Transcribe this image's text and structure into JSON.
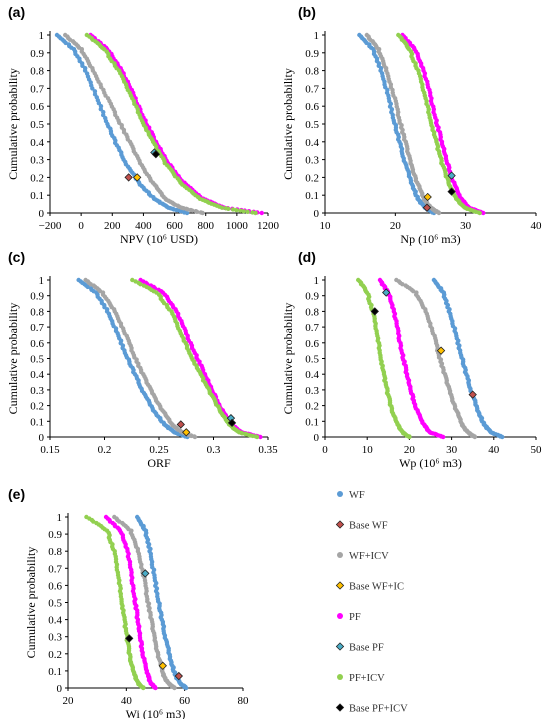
{
  "legend": [
    {
      "label": "WF",
      "kind": "dot",
      "color": "#5b9bd5"
    },
    {
      "label": "Base WF",
      "kind": "diamond",
      "color": "#c0504d"
    },
    {
      "label": "WF+ICV",
      "kind": "dot",
      "color": "#a5a5a5"
    },
    {
      "label": "Base WF+IC",
      "kind": "diamond",
      "color": "#ffc000"
    },
    {
      "label": "PF",
      "kind": "dot",
      "color": "#ff00ff"
    },
    {
      "label": "Base PF",
      "kind": "diamond",
      "color": "#4bacc6"
    },
    {
      "label": "PF+ICV",
      "kind": "dot",
      "color": "#92d050"
    },
    {
      "label": "Base PF+ICV",
      "kind": "diamond",
      "color": "#000000"
    }
  ],
  "chart_data": [
    {
      "type": "scatter",
      "panel": "(a)",
      "xlabel": "NPV (10⁶ USD)",
      "ylabel": "Cumulative probability",
      "xlim": [
        -200,
        1200
      ],
      "xticks": [
        -200,
        0,
        200,
        400,
        600,
        800,
        1000,
        1200
      ],
      "ylim": [
        0,
        1
      ],
      "yticks": [
        0,
        0.1,
        0.2,
        0.3,
        0.4,
        0.5,
        0.6,
        0.7,
        0.8,
        0.9,
        1
      ],
      "series": [
        {
          "name": "WF",
          "color": "#5b9bd5",
          "x": [
            -150,
            -50,
            30,
            100,
            170,
            230,
            300,
            380,
            470,
            560,
            680
          ],
          "y": [
            1,
            0.92,
            0.8,
            0.65,
            0.5,
            0.38,
            0.26,
            0.16,
            0.08,
            0.03,
            0
          ]
        },
        {
          "name": "WF+ICV",
          "color": "#a5a5a5",
          "x": [
            -100,
            0,
            80,
            160,
            240,
            310,
            380,
            460,
            540,
            640,
            780
          ],
          "y": [
            1,
            0.92,
            0.8,
            0.66,
            0.52,
            0.4,
            0.28,
            0.17,
            0.08,
            0.03,
            0
          ]
        },
        {
          "name": "PF",
          "color": "#ff00ff",
          "x": [
            60,
            170,
            260,
            340,
            410,
            480,
            560,
            660,
            780,
            920,
            1160
          ],
          "y": [
            1,
            0.92,
            0.8,
            0.66,
            0.52,
            0.4,
            0.28,
            0.17,
            0.08,
            0.03,
            0
          ]
        },
        {
          "name": "PF+ICV",
          "color": "#92d050",
          "x": [
            40,
            150,
            240,
            320,
            390,
            460,
            540,
            640,
            760,
            900,
            1120
          ],
          "y": [
            1,
            0.92,
            0.8,
            0.66,
            0.52,
            0.4,
            0.28,
            0.17,
            0.08,
            0.03,
            0
          ]
        }
      ],
      "markers": [
        {
          "name": "Base WF",
          "color": "#c0504d",
          "x": 305,
          "y": 0.2
        },
        {
          "name": "Base WF+IC",
          "color": "#ffc000",
          "x": 360,
          "y": 0.2
        },
        {
          "name": "Base PF",
          "color": "#4bacc6",
          "x": 470,
          "y": 0.34
        },
        {
          "name": "Base PF+ICV",
          "color": "#000000",
          "x": 480,
          "y": 0.33
        }
      ]
    },
    {
      "type": "scatter",
      "panel": "(b)",
      "xlabel": "Np (10⁶ m3)",
      "ylabel": "Cumulative probability",
      "xlim": [
        10,
        40
      ],
      "xticks": [
        10,
        20,
        30,
        40
      ],
      "ylim": [
        0,
        1
      ],
      "yticks": [
        0,
        0.1,
        0.2,
        0.3,
        0.4,
        0.5,
        0.6,
        0.7,
        0.8,
        0.9,
        1
      ],
      "series": [
        {
          "name": "WF",
          "color": "#5b9bd5",
          "x": [
            15,
            16.8,
            18,
            19,
            19.8,
            20.6,
            21.4,
            22.3,
            23.2,
            24.2,
            25.5
          ],
          "y": [
            1,
            0.92,
            0.8,
            0.66,
            0.52,
            0.4,
            0.28,
            0.17,
            0.08,
            0.03,
            0
          ]
        },
        {
          "name": "WF+ICV",
          "color": "#a5a5a5",
          "x": [
            16,
            17.6,
            18.8,
            19.8,
            20.6,
            21.4,
            22.2,
            23.1,
            24.1,
            25,
            26.2
          ],
          "y": [
            1,
            0.92,
            0.8,
            0.66,
            0.52,
            0.4,
            0.28,
            0.17,
            0.08,
            0.03,
            0
          ]
        },
        {
          "name": "PF",
          "color": "#ff00ff",
          "x": [
            21,
            22.8,
            24,
            25,
            25.8,
            26.6,
            27.4,
            28.3,
            29.3,
            30.5,
            32.5
          ],
          "y": [
            1,
            0.92,
            0.8,
            0.66,
            0.52,
            0.4,
            0.28,
            0.17,
            0.08,
            0.03,
            0
          ]
        },
        {
          "name": "PF+ICV",
          "color": "#92d050",
          "x": [
            20.5,
            22,
            23.2,
            24.2,
            25,
            25.8,
            26.6,
            27.6,
            28.6,
            29.8,
            32
          ],
          "y": [
            1,
            0.92,
            0.8,
            0.66,
            0.52,
            0.4,
            0.28,
            0.17,
            0.08,
            0.03,
            0
          ]
        }
      ],
      "markers": [
        {
          "name": "Base WF",
          "color": "#c0504d",
          "x": 24.5,
          "y": 0.03
        },
        {
          "name": "Base WF+IC",
          "color": "#ffc000",
          "x": 24.6,
          "y": 0.09
        },
        {
          "name": "Base PF",
          "color": "#4bacc6",
          "x": 28,
          "y": 0.21
        },
        {
          "name": "Base PF+ICV",
          "color": "#000000",
          "x": 28,
          "y": 0.12
        }
      ]
    },
    {
      "type": "scatter",
      "panel": "(c)",
      "xlabel": "ORF",
      "ylabel": "Cumulative probability",
      "xlim": [
        0.15,
        0.35
      ],
      "xticks": [
        0.15,
        0.2,
        0.25,
        0.3,
        0.35
      ],
      "ylim": [
        0,
        1
      ],
      "yticks": [
        0,
        0.1,
        0.2,
        0.3,
        0.4,
        0.5,
        0.6,
        0.7,
        0.8,
        0.9,
        1
      ],
      "series": [
        {
          "name": "WF",
          "color": "#5b9bd5",
          "x": [
            0.177,
            0.192,
            0.203,
            0.212,
            0.22,
            0.228,
            0.236,
            0.245,
            0.255,
            0.264,
            0.276
          ],
          "y": [
            1,
            0.92,
            0.8,
            0.66,
            0.52,
            0.4,
            0.28,
            0.17,
            0.08,
            0.03,
            0
          ]
        },
        {
          "name": "WF+ICV",
          "color": "#a5a5a5",
          "x": [
            0.183,
            0.198,
            0.21,
            0.219,
            0.227,
            0.235,
            0.244,
            0.253,
            0.262,
            0.271,
            0.283
          ],
          "y": [
            1,
            0.92,
            0.8,
            0.66,
            0.52,
            0.4,
            0.28,
            0.17,
            0.08,
            0.03,
            0
          ]
        },
        {
          "name": "PF",
          "color": "#ff00ff",
          "x": [
            0.233,
            0.254,
            0.266,
            0.275,
            0.284,
            0.292,
            0.3,
            0.308,
            0.316,
            0.326,
            0.343
          ],
          "y": [
            1,
            0.92,
            0.8,
            0.66,
            0.52,
            0.4,
            0.28,
            0.17,
            0.08,
            0.03,
            0
          ]
        },
        {
          "name": "PF+ICV",
          "color": "#92d050",
          "x": [
            0.226,
            0.248,
            0.261,
            0.27,
            0.279,
            0.288,
            0.297,
            0.306,
            0.314,
            0.323,
            0.34
          ],
          "y": [
            1,
            0.92,
            0.8,
            0.66,
            0.52,
            0.4,
            0.28,
            0.17,
            0.08,
            0.03,
            0
          ]
        }
      ],
      "markers": [
        {
          "name": "Base WF",
          "color": "#c0504d",
          "x": 0.27,
          "y": 0.08
        },
        {
          "name": "Base WF+IC",
          "color": "#ffc000",
          "x": 0.275,
          "y": 0.03
        },
        {
          "name": "Base PF",
          "color": "#4bacc6",
          "x": 0.316,
          "y": 0.12
        },
        {
          "name": "Base PF+ICV",
          "color": "#000000",
          "x": 0.317,
          "y": 0.09
        }
      ]
    },
    {
      "type": "scatter",
      "panel": "(d)",
      "xlabel": "Wp (10⁶ m3)",
      "ylabel": "Cumulative probability",
      "xlim": [
        0,
        50
      ],
      "xticks": [
        0,
        10,
        20,
        30,
        40,
        50
      ],
      "ylim": [
        0,
        1
      ],
      "yticks": [
        0,
        0.1,
        0.2,
        0.3,
        0.4,
        0.5,
        0.6,
        0.7,
        0.8,
        0.9,
        1
      ],
      "series": [
        {
          "name": "WF",
          "color": "#5b9bd5",
          "x": [
            26,
            28,
            29.5,
            31,
            32.3,
            33.5,
            34.8,
            36.2,
            37.7,
            39.3,
            42
          ],
          "y": [
            1,
            0.92,
            0.8,
            0.66,
            0.52,
            0.4,
            0.28,
            0.17,
            0.08,
            0.03,
            0
          ]
        },
        {
          "name": "WF+ICV",
          "color": "#a5a5a5",
          "x": [
            17,
            21.5,
            24,
            25.7,
            27,
            28.3,
            29.7,
            31.1,
            32.5,
            33.8,
            35.5
          ],
          "y": [
            1,
            0.92,
            0.8,
            0.66,
            0.52,
            0.4,
            0.28,
            0.17,
            0.08,
            0.03,
            0
          ]
        },
        {
          "name": "PF",
          "color": "#ff00ff",
          "x": [
            13,
            15,
            16.3,
            17.4,
            18.4,
            19.4,
            20.5,
            21.8,
            23.3,
            24.9,
            28
          ],
          "y": [
            1,
            0.92,
            0.8,
            0.66,
            0.52,
            0.4,
            0.28,
            0.17,
            0.08,
            0.03,
            0
          ]
        },
        {
          "name": "PF+ICV",
          "color": "#92d050",
          "x": [
            8,
            10,
            11.3,
            12.3,
            13.1,
            13.9,
            14.8,
            15.9,
            17.1,
            18.3,
            20
          ],
          "y": [
            1,
            0.92,
            0.8,
            0.66,
            0.52,
            0.4,
            0.28,
            0.17,
            0.08,
            0.03,
            0
          ]
        }
      ],
      "markers": [
        {
          "name": "Base WF",
          "color": "#c0504d",
          "x": 35,
          "y": 0.27
        },
        {
          "name": "Base WF+IC",
          "color": "#ffc000",
          "x": 27.5,
          "y": 0.55
        },
        {
          "name": "Base PF",
          "color": "#4bacc6",
          "x": 14.5,
          "y": 0.92
        },
        {
          "name": "Base PF+ICV",
          "color": "#000000",
          "x": 11.8,
          "y": 0.8
        }
      ]
    },
    {
      "type": "scatter",
      "panel": "(e)",
      "xlabel": "Wi (10⁶ m3)",
      "ylabel": "Cumulative probability",
      "xlim": [
        20,
        80
      ],
      "xticks": [
        20,
        40,
        60,
        80
      ],
      "ylim": [
        0,
        1
      ],
      "yticks": [
        0,
        0.1,
        0.2,
        0.3,
        0.4,
        0.5,
        0.6,
        0.7,
        0.8,
        0.9,
        1
      ],
      "series": [
        {
          "name": "WF",
          "color": "#5b9bd5",
          "x": [
            44,
            46.5,
            48.2,
            49.6,
            50.9,
            52.2,
            53.6,
            55.1,
            56.7,
            58.3,
            60.5
          ],
          "y": [
            1,
            0.92,
            0.8,
            0.66,
            0.52,
            0.4,
            0.28,
            0.17,
            0.08,
            0.03,
            0
          ]
        },
        {
          "name": "WF+ICV",
          "color": "#a5a5a5",
          "x": [
            36,
            41.5,
            44.2,
            45.9,
            47.2,
            48.5,
            49.8,
            51.2,
            52.7,
            54.2,
            56.5
          ],
          "y": [
            1,
            0.92,
            0.8,
            0.66,
            0.52,
            0.4,
            0.28,
            0.17,
            0.08,
            0.03,
            0
          ]
        },
        {
          "name": "PF",
          "color": "#ff00ff",
          "x": [
            33,
            38,
            40.4,
            41.8,
            42.9,
            43.9,
            44.9,
            46,
            47.2,
            48.4,
            50
          ],
          "y": [
            1,
            0.92,
            0.8,
            0.66,
            0.52,
            0.4,
            0.28,
            0.17,
            0.08,
            0.03,
            0
          ]
        },
        {
          "name": "PF+ICV",
          "color": "#92d050",
          "x": [
            26.5,
            33.5,
            35.8,
            37.2,
            38.3,
            39.3,
            40.3,
            41.4,
            42.6,
            43.9,
            45.8
          ],
          "y": [
            1,
            0.92,
            0.8,
            0.66,
            0.52,
            0.4,
            0.28,
            0.17,
            0.08,
            0.03,
            0
          ]
        }
      ],
      "markers": [
        {
          "name": "Base WF",
          "color": "#c0504d",
          "x": 58,
          "y": 0.07
        },
        {
          "name": "Base WF+IC",
          "color": "#ffc000",
          "x": 52.5,
          "y": 0.13
        },
        {
          "name": "Base PF",
          "color": "#4bacc6",
          "x": 46.5,
          "y": 0.67
        },
        {
          "name": "Base PF+ICV",
          "color": "#000000",
          "x": 41,
          "y": 0.29
        }
      ]
    }
  ]
}
